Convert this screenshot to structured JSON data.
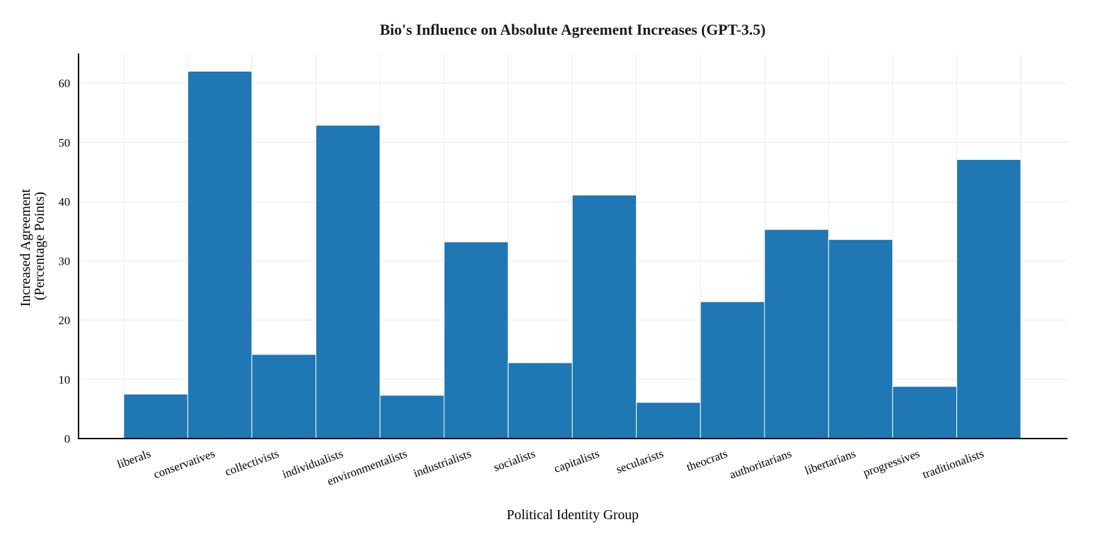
{
  "chart_data": {
    "type": "bar",
    "title": "Bio's Influence on Absolute Agreement Increases (GPT-3.5)",
    "xlabel": "Political Identity Group",
    "ylabel": [
      "Increased Agreement",
      "(Percentage Points)"
    ],
    "categories": [
      "liberals",
      "conservatives",
      "collectivists",
      "individualists",
      "environmentalists",
      "industrialists",
      "socialists",
      "capitalists",
      "secularists",
      "theocrats",
      "authoritarians",
      "libertarians",
      "progressives",
      "traditionalists"
    ],
    "values": [
      7.5,
      62.0,
      14.2,
      52.9,
      7.3,
      33.2,
      12.8,
      41.1,
      6.1,
      23.1,
      35.3,
      33.6,
      8.8,
      47.1
    ],
    "ylim": [
      0,
      65
    ],
    "yticks": [
      0,
      10,
      20,
      30,
      40,
      50,
      60
    ],
    "grid": true,
    "bar_color": "#1f77b4"
  }
}
